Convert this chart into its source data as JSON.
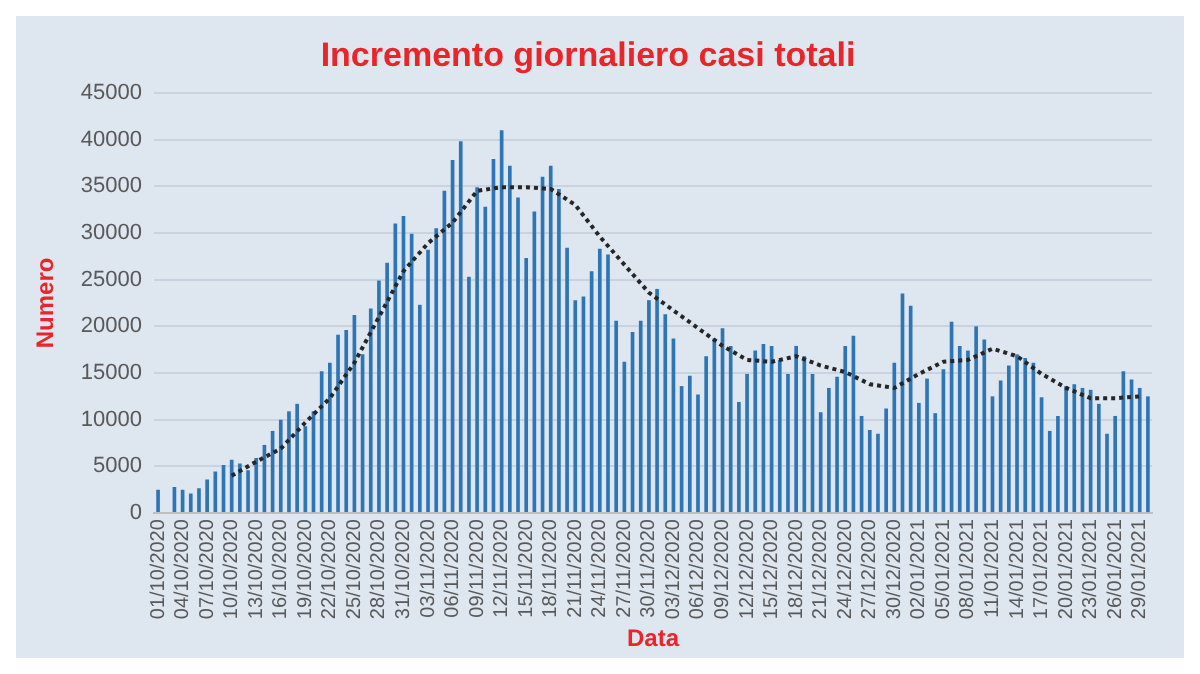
{
  "chart_data": {
    "type": "bar",
    "title": "Incremento giornaliero casi totali",
    "xlabel": "Data",
    "ylabel": "Numero",
    "categories": [
      "01/10/2020",
      null,
      null,
      "04/10/2020",
      null,
      null,
      "07/10/2020",
      null,
      null,
      "10/10/2020",
      null,
      null,
      "13/10/2020",
      null,
      null,
      "16/10/2020",
      null,
      null,
      "19/10/2020",
      null,
      null,
      "22/10/2020",
      null,
      null,
      "25/10/2020",
      null,
      null,
      "28/10/2020",
      null,
      null,
      "31/10/2020",
      null,
      null,
      "03/11/2020",
      null,
      null,
      "06/11/2020",
      null,
      null,
      "09/11/2020",
      null,
      null,
      "12/11/2020",
      null,
      null,
      "15/11/2020",
      null,
      null,
      "18/11/2020",
      null,
      null,
      "21/11/2020",
      null,
      null,
      "24/11/2020",
      null,
      null,
      "27/11/2020",
      null,
      null,
      "30/11/2020",
      null,
      null,
      "03/12/2020",
      null,
      null,
      "06/12/2020",
      null,
      null,
      "09/12/2020",
      null,
      null,
      "12/12/2020",
      null,
      null,
      "15/12/2020",
      null,
      null,
      "18/12/2020",
      null,
      null,
      "21/12/2020",
      null,
      null,
      "24/12/2020",
      null,
      null,
      "27/12/2020",
      null,
      null,
      "30/12/2020",
      null,
      null,
      "02/01/2021",
      null,
      null,
      "05/01/2021",
      null,
      null,
      "08/01/2021",
      null,
      null,
      "11/01/2021",
      null,
      null,
      "14/01/2021",
      null,
      null,
      "17/01/2021",
      null,
      null,
      "20/01/2021",
      null,
      null,
      "23/01/2021",
      null,
      null,
      "26/01/2021",
      null,
      null,
      "29/01/2021",
      null
    ],
    "series": [
      {
        "color": "#2e75b6",
        "values": [
          2500,
          null,
          2800,
          2500,
          2100,
          2650,
          3600,
          4450,
          5150,
          5700,
          5300,
          4600,
          5900,
          7300,
          8800,
          10000,
          10900,
          11700,
          9300,
          10900,
          15200,
          16100,
          19100,
          19600,
          21200,
          17000,
          21900,
          24900,
          26800,
          31000,
          31800,
          29900,
          22300,
          28200,
          30500,
          34500,
          37800,
          39800,
          25300,
          34900,
          32800,
          37900,
          41000,
          37200,
          33800,
          27300,
          32300,
          36000,
          37200,
          34700,
          28400,
          22800,
          23200,
          25900,
          28300,
          27700,
          20600,
          16200,
          19400,
          20600,
          22800,
          24000,
          21300,
          18700,
          13600,
          14700,
          12700,
          16800,
          18700,
          19800,
          17900,
          11900,
          14900,
          17400,
          18100,
          17900,
          16400,
          14900,
          17900,
          16800,
          14900,
          10800,
          13400,
          14600,
          17900,
          19000,
          10400,
          8900,
          8500,
          11200,
          16100,
          23500,
          22200,
          11800,
          14400,
          10700,
          15400,
          20500,
          17900,
          17400,
          20000,
          18600,
          12500,
          14200,
          15800,
          17000,
          16600,
          16100,
          12400,
          8800,
          10400,
          13600,
          13800,
          13400,
          13200,
          11700,
          8500,
          10400,
          15200,
          14300,
          13400,
          12500
        ]
      },
      {
        "type": "line",
        "color": "#262626",
        "line_style": "dotted",
        "marker": "none",
        "x": [
          "10/10/2020",
          "13/10/2020",
          "16/10/2020",
          "19/10/2020",
          "22/10/2020",
          "25/10/2020",
          "28/10/2020",
          "31/10/2020",
          "03/11/2020",
          "06/11/2020",
          "09/11/2020",
          "12/11/2020",
          "15/11/2020",
          "18/11/2020",
          "21/11/2020",
          "24/11/2020",
          "27/11/2020",
          "30/11/2020",
          "03/12/2020",
          "06/12/2020",
          "09/12/2020",
          "12/12/2020",
          "15/12/2020",
          "18/12/2020",
          "21/12/2020",
          "24/12/2020",
          "27/12/2020",
          "30/12/2020",
          "02/01/2021",
          "05/01/2021",
          "08/01/2021",
          "11/01/2021",
          "14/01/2021",
          "17/01/2021",
          "20/01/2021",
          "23/01/2021",
          "26/01/2021",
          "29/01/2021"
        ],
        "values": [
          4000,
          5500,
          6900,
          9700,
          12300,
          16100,
          21000,
          25900,
          28900,
          31100,
          34500,
          34900,
          34900,
          34700,
          33000,
          29600,
          26600,
          23600,
          21700,
          19800,
          17900,
          16400,
          16200,
          16800,
          15800,
          15100,
          13800,
          13400,
          14900,
          16200,
          16400,
          17600,
          16800,
          14900,
          13400,
          12300,
          12300,
          12500
        ]
      }
    ],
    "ylim": [
      0,
      45000
    ],
    "yticks": [
      0,
      5000,
      10000,
      15000,
      20000,
      25000,
      30000,
      35000,
      40000,
      45000
    ],
    "grid": "y",
    "legend": false
  }
}
